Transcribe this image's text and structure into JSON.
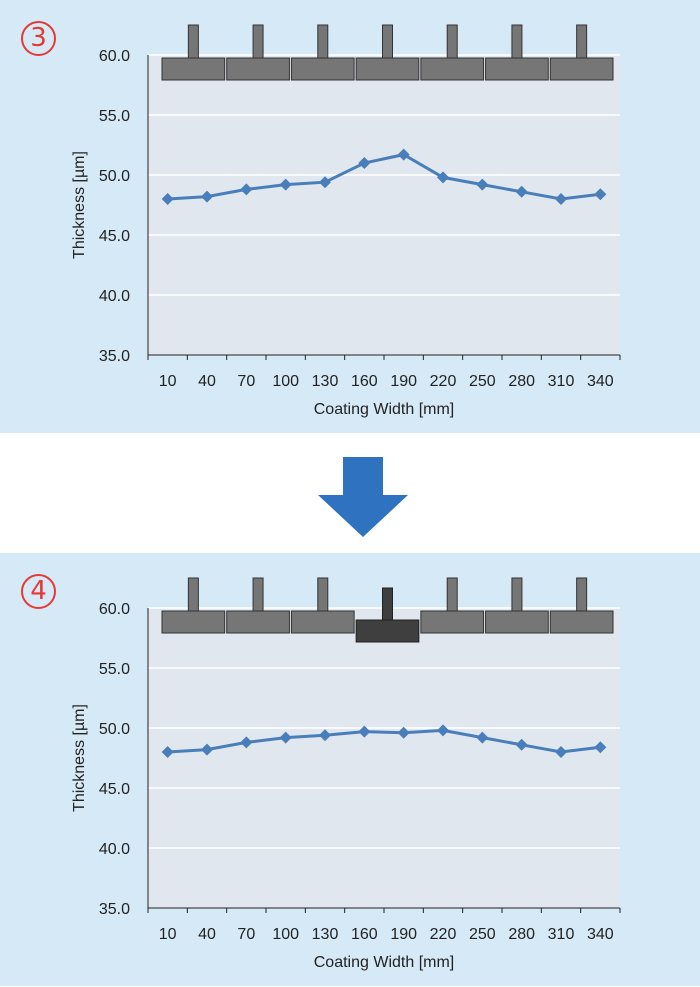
{
  "steps": [
    {
      "badge": "3"
    },
    {
      "badge": "4"
    }
  ],
  "colors": {
    "panel_bg": "#d6e9f7",
    "plot_bg": "#e1e7ee",
    "grid": "#ffffff",
    "line": "#4a7ebb",
    "segment": "#767676",
    "segment_adjusted": "#3f3f3f",
    "arrow": "#2f73c0",
    "badge": "#e53935"
  },
  "chart_data": [
    {
      "type": "line",
      "title": "",
      "xlabel": "Coating Width [mm]",
      "ylabel": "Thickness [µm]",
      "categories": [
        "10",
        "40",
        "70",
        "100",
        "130",
        "160",
        "190",
        "220",
        "250",
        "280",
        "310",
        "340"
      ],
      "series": [
        {
          "name": "Thickness",
          "values": [
            48.0,
            48.2,
            48.8,
            49.2,
            49.4,
            51.0,
            51.7,
            49.8,
            49.2,
            48.6,
            48.0,
            48.4
          ]
        }
      ],
      "ylim": [
        35.0,
        60.0
      ],
      "yticks": [
        "35.0",
        "40.0",
        "45.0",
        "50.0",
        "55.0",
        "60.0"
      ],
      "grid": true,
      "die_segments": {
        "count": 7,
        "adjusted_index": -1
      }
    },
    {
      "type": "line",
      "title": "",
      "xlabel": "Coating Width [mm]",
      "ylabel": "Thickness [µm]",
      "categories": [
        "10",
        "40",
        "70",
        "100",
        "130",
        "160",
        "190",
        "220",
        "250",
        "280",
        "310",
        "340"
      ],
      "series": [
        {
          "name": "Thickness",
          "values": [
            48.0,
            48.2,
            48.8,
            49.2,
            49.4,
            49.7,
            49.6,
            49.8,
            49.2,
            48.6,
            48.0,
            48.4
          ]
        }
      ],
      "ylim": [
        35.0,
        60.0
      ],
      "yticks": [
        "35.0",
        "40.0",
        "45.0",
        "50.0",
        "55.0",
        "60.0"
      ],
      "grid": true,
      "die_segments": {
        "count": 7,
        "adjusted_index": 3
      }
    }
  ]
}
